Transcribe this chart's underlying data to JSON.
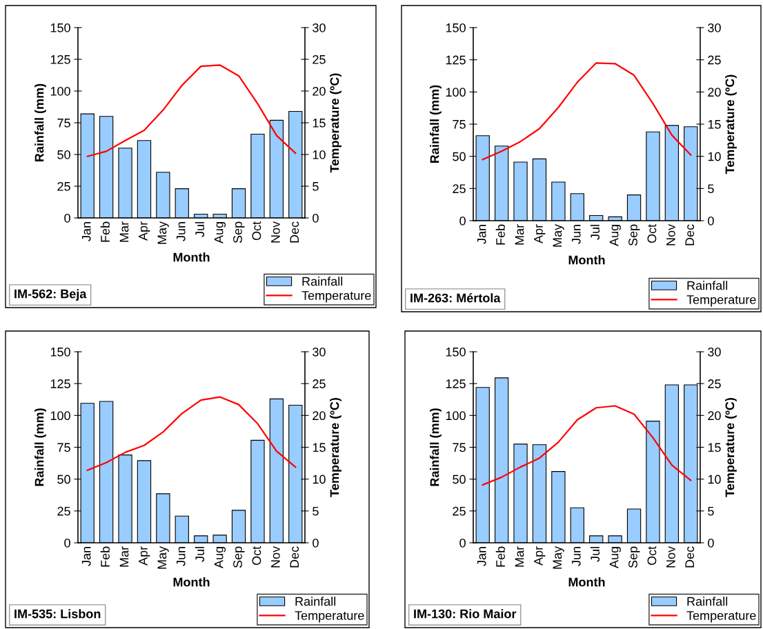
{
  "chart_data": [
    {
      "type": "bar",
      "title": "IM-562: Beja",
      "xlabel": "Month",
      "ylabel": "Rainfall (mm)",
      "y2label": "Temperature (ºC)",
      "categories": [
        "Jan",
        "Feb",
        "Mar",
        "Apr",
        "May",
        "Jun",
        "Jul",
        "Aug",
        "Sep",
        "Oct",
        "Nov",
        "Dec"
      ],
      "ylim": [
        0,
        150
      ],
      "yticks": [
        0,
        25,
        50,
        75,
        100,
        125,
        150
      ],
      "y2lim": [
        0,
        30
      ],
      "y2ticks": [
        0,
        5,
        10,
        15,
        20,
        25,
        30
      ],
      "grid": false,
      "legend": "bottom right",
      "series": [
        {
          "name": "Rainfall",
          "type": "bar",
          "color": "#99ccff",
          "values": [
            82,
            80,
            55,
            61,
            36,
            23,
            3,
            3,
            23,
            66,
            77,
            84
          ]
        },
        {
          "name": "Temperature",
          "type": "line",
          "axis": "y2",
          "color": "#ff0000",
          "values": [
            9.7,
            10.5,
            12.2,
            13.8,
            17,
            20.9,
            23.9,
            24.1,
            22.4,
            18,
            13,
            10.2
          ]
        }
      ]
    },
    {
      "type": "bar",
      "title": "IM-263: Mértola",
      "xlabel": "Month",
      "ylabel": "Rainfall (mm)",
      "y2label": "Temperature (ºC)",
      "categories": [
        "Jan",
        "Feb",
        "Mar",
        "Apr",
        "May",
        "Jun",
        "Jul",
        "Aug",
        "Sep",
        "Oct",
        "Nov",
        "Dec"
      ],
      "ylim": [
        0,
        150
      ],
      "yticks": [
        0,
        25,
        50,
        75,
        100,
        125,
        150
      ],
      "y2lim": [
        0,
        30
      ],
      "y2ticks": [
        0,
        5,
        10,
        15,
        20,
        25,
        30
      ],
      "grid": false,
      "legend": "bottom right",
      "series": [
        {
          "name": "Rainfall",
          "type": "bar",
          "color": "#99ccff",
          "values": [
            66,
            58,
            45.5,
            48,
            30,
            21,
            4,
            3,
            20,
            69,
            74,
            73
          ]
        },
        {
          "name": "Temperature",
          "type": "line",
          "axis": "y2",
          "color": "#ff0000",
          "values": [
            9.5,
            10.8,
            12.3,
            14.3,
            17.6,
            21.5,
            24.5,
            24.4,
            22.6,
            18.2,
            13.3,
            10.2
          ]
        }
      ]
    },
    {
      "type": "bar",
      "title": "IM-535: Lisbon",
      "xlabel": "Month",
      "ylabel": "Rainfall (mm)",
      "y2label": "Temperature (ºC)",
      "categories": [
        "Jan",
        "Feb",
        "Mar",
        "Apr",
        "May",
        "Jun",
        "Jul",
        "Aug",
        "Sep",
        "Oct",
        "Nov",
        "Dec"
      ],
      "ylim": [
        0,
        150
      ],
      "yticks": [
        0,
        25,
        50,
        75,
        100,
        125,
        150
      ],
      "y2lim": [
        0,
        30
      ],
      "y2ticks": [
        0,
        5,
        10,
        15,
        20,
        25,
        30
      ],
      "grid": false,
      "legend": "bottom right",
      "series": [
        {
          "name": "Rainfall",
          "type": "bar",
          "color": "#99ccff",
          "values": [
            109.5,
            111,
            69,
            64.5,
            38.5,
            21,
            5.5,
            6,
            25.5,
            80.5,
            113,
            108
          ]
        },
        {
          "name": "Temperature",
          "type": "line",
          "axis": "y2",
          "color": "#ff0000",
          "values": [
            11.4,
            12.6,
            14.2,
            15.3,
            17.4,
            20.3,
            22.4,
            22.9,
            21.7,
            18.7,
            14.4,
            11.9
          ]
        }
      ]
    },
    {
      "type": "bar",
      "title": "IM-130: Rio Maior",
      "xlabel": "Month",
      "ylabel": "Rainfall (mm)",
      "y2label": "Temperature (ºC)",
      "categories": [
        "Jan",
        "Feb",
        "Mar",
        "Apr",
        "May",
        "Jun",
        "Jul",
        "Aug",
        "Sep",
        "Oct",
        "Nov",
        "Dec"
      ],
      "ylim": [
        0,
        150
      ],
      "yticks": [
        0,
        25,
        50,
        75,
        100,
        125,
        150
      ],
      "y2lim": [
        0,
        30
      ],
      "y2ticks": [
        0,
        5,
        10,
        15,
        20,
        25,
        30
      ],
      "grid": false,
      "legend": "bottom right",
      "series": [
        {
          "name": "Rainfall",
          "type": "bar",
          "color": "#99ccff",
          "values": [
            122,
            129.5,
            77.5,
            77,
            56,
            27.5,
            5.5,
            5.5,
            26.5,
            95.5,
            124,
            124
          ]
        },
        {
          "name": "Temperature",
          "type": "line",
          "axis": "y2",
          "color": "#ff0000",
          "values": [
            9.1,
            10.3,
            11.9,
            13.3,
            15.8,
            19.3,
            21.2,
            21.5,
            20.2,
            16.5,
            12.2,
            9.8
          ]
        }
      ]
    }
  ]
}
